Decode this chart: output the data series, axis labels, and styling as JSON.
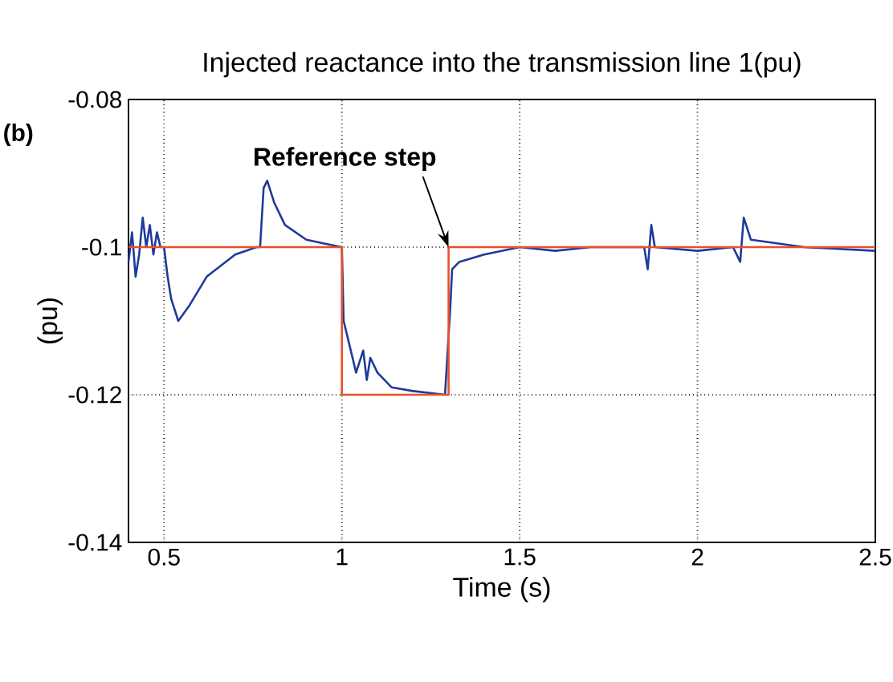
{
  "chart_data": {
    "type": "line",
    "title": "Injected reactance into the transmission line 1(pu)",
    "xlabel": "Time (s)",
    "ylabel": "(pu)",
    "annotations": [
      "(b)",
      {
        "text": "Reference step",
        "x": 1.3,
        "y": -0.1
      }
    ],
    "xlim": [
      0.4,
      2.5
    ],
    "ylim": [
      -0.14,
      -0.08
    ],
    "xticks": [
      0.5,
      1,
      1.5,
      2,
      2.5
    ],
    "yticks": [
      -0.14,
      -0.12,
      -0.1,
      -0.08
    ],
    "grid": true,
    "series": [
      {
        "color": "#1f3a9a",
        "x": [
          0.4,
          0.41,
          0.42,
          0.43,
          0.44,
          0.45,
          0.46,
          0.47,
          0.48,
          0.49,
          0.5,
          0.51,
          0.52,
          0.54,
          0.57,
          0.62,
          0.7,
          0.76,
          0.77,
          0.78,
          0.79,
          0.81,
          0.84,
          0.9,
          0.95,
          1.0,
          1.005,
          1.02,
          1.03,
          1.04,
          1.06,
          1.07,
          1.08,
          1.1,
          1.14,
          1.2,
          1.29,
          1.305,
          1.31,
          1.33,
          1.4,
          1.5,
          1.6,
          1.7,
          1.85,
          1.86,
          1.87,
          1.88,
          2.0,
          2.1,
          2.12,
          2.13,
          2.15,
          2.3,
          2.5
        ],
        "values": [
          -0.102,
          -0.098,
          -0.104,
          -0.101,
          -0.096,
          -0.1,
          -0.097,
          -0.101,
          -0.098,
          -0.1,
          -0.1,
          -0.104,
          -0.107,
          -0.11,
          -0.108,
          -0.104,
          -0.101,
          -0.1,
          -0.1,
          -0.092,
          -0.091,
          -0.094,
          -0.097,
          -0.099,
          -0.0995,
          -0.1,
          -0.11,
          -0.113,
          -0.115,
          -0.117,
          -0.114,
          -0.118,
          -0.115,
          -0.117,
          -0.119,
          -0.1195,
          -0.12,
          -0.108,
          -0.103,
          -0.102,
          -0.101,
          -0.1,
          -0.1005,
          -0.1,
          -0.1,
          -0.103,
          -0.097,
          -0.1,
          -0.1005,
          -0.1,
          -0.102,
          -0.096,
          -0.099,
          -0.1,
          -0.1005
        ]
      },
      {
        "color": "#e8502a",
        "x": [
          0.4,
          1.0,
          1.0,
          1.3,
          1.3,
          2.5
        ],
        "values": [
          -0.1,
          -0.1,
          -0.12,
          -0.12,
          -0.1,
          -0.1
        ]
      }
    ]
  }
}
